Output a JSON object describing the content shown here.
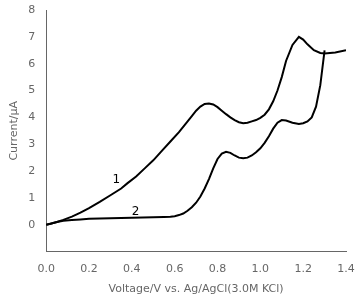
{
  "chart_data": {
    "type": "line",
    "xlabel": "Voltage/V vs. Ag/AgCl(3.0M KCl)",
    "ylabel": "Current/μA",
    "xlim": [
      0.0,
      1.4
    ],
    "ylim": [
      -1.0,
      8.0
    ],
    "xticks": [
      {
        "value": 0.0,
        "label": "0.0"
      },
      0.2,
      0.4,
      0.6,
      0.8,
      {
        "value": 1.0,
        "label": "1.0"
      },
      1.2,
      1.4
    ],
    "yticks": [
      0,
      1,
      2,
      3,
      4,
      5,
      6,
      7,
      8
    ],
    "grid": false,
    "series": [
      {
        "color": "#000000",
        "x": [
          0.0,
          0.02,
          0.05,
          0.08,
          0.12,
          0.16,
          0.2,
          0.25,
          0.3,
          0.35,
          0.38,
          0.42,
          0.46,
          0.5,
          0.54,
          0.58,
          0.62,
          0.65,
          0.68,
          0.7,
          0.72,
          0.74,
          0.76,
          0.78,
          0.8,
          0.82,
          0.84,
          0.86,
          0.88,
          0.9,
          0.92,
          0.94,
          0.96,
          0.98,
          1.0,
          1.02,
          1.04,
          1.06,
          1.08,
          1.1,
          1.12,
          1.15,
          1.18,
          1.2,
          1.22,
          1.25,
          1.28,
          1.3,
          1.35,
          1.4
        ],
        "values": [
          0.0,
          0.04,
          0.1,
          0.18,
          0.3,
          0.45,
          0.62,
          0.85,
          1.1,
          1.35,
          1.55,
          1.8,
          2.1,
          2.4,
          2.75,
          3.1,
          3.45,
          3.75,
          4.05,
          4.25,
          4.4,
          4.5,
          4.52,
          4.48,
          4.38,
          4.25,
          4.12,
          4.0,
          3.9,
          3.82,
          3.78,
          3.8,
          3.85,
          3.9,
          3.98,
          4.1,
          4.3,
          4.6,
          5.0,
          5.5,
          6.1,
          6.7,
          7.0,
          6.9,
          6.72,
          6.5,
          6.4,
          6.38,
          6.42,
          6.5
        ]
      },
      {
        "color": "#000000",
        "x": [
          0.0,
          0.02,
          0.05,
          0.08,
          0.12,
          0.16,
          0.2,
          0.25,
          0.3,
          0.35,
          0.4,
          0.45,
          0.5,
          0.55,
          0.58,
          0.6,
          0.62,
          0.64,
          0.66,
          0.68,
          0.7,
          0.72,
          0.74,
          0.76,
          0.78,
          0.8,
          0.82,
          0.84,
          0.86,
          0.88,
          0.9,
          0.92,
          0.94,
          0.96,
          0.98,
          1.0,
          1.02,
          1.04,
          1.06,
          1.08,
          1.1,
          1.12,
          1.15,
          1.18,
          1.2,
          1.22,
          1.24,
          1.26,
          1.28,
          1.3
        ],
        "values": [
          0.0,
          0.04,
          0.1,
          0.15,
          0.18,
          0.2,
          0.22,
          0.23,
          0.24,
          0.25,
          0.26,
          0.27,
          0.28,
          0.29,
          0.3,
          0.32,
          0.36,
          0.42,
          0.52,
          0.65,
          0.82,
          1.05,
          1.35,
          1.7,
          2.1,
          2.45,
          2.65,
          2.72,
          2.68,
          2.58,
          2.5,
          2.48,
          2.5,
          2.58,
          2.7,
          2.85,
          3.05,
          3.3,
          3.58,
          3.8,
          3.9,
          3.88,
          3.8,
          3.75,
          3.78,
          3.85,
          4.0,
          4.4,
          5.2,
          6.5
        ]
      }
    ],
    "annotations": [
      {
        "text": "1",
        "x": 0.31,
        "y": 1.55,
        "color": "#000000"
      },
      {
        "text": "2",
        "x": 0.4,
        "y": 0.38,
        "color": "#000000"
      }
    ]
  }
}
